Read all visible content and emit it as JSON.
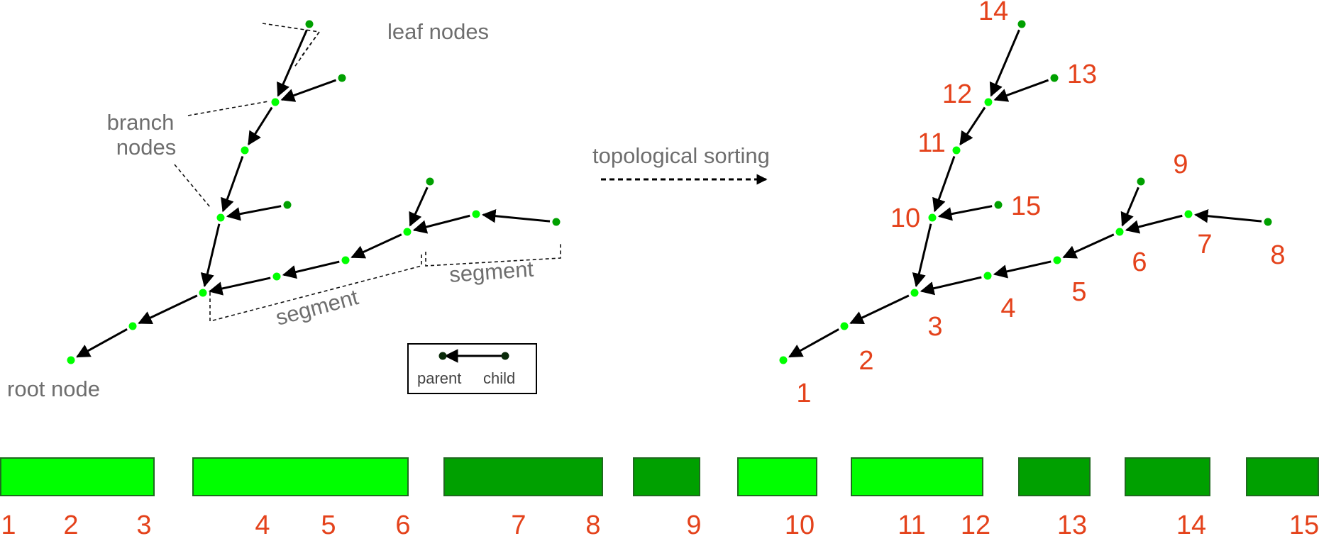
{
  "labels": {
    "leaf_nodes": "leaf nodes",
    "branch": "branch",
    "nodes": "nodes",
    "root_node": "root node",
    "segment_1": "segment",
    "segment_2": "segment",
    "topological_sorting": "topological sorting",
    "legend_parent": "parent",
    "legend_child": "child"
  },
  "colors": {
    "branch_node": "#00ff00",
    "leaf_node": "#00a000",
    "label_gray": "#6e6e6e",
    "number_orange": "#e4421b",
    "edge": "#000000"
  },
  "sorted_node_numbers": [
    "1",
    "2",
    "3",
    "4",
    "5",
    "6",
    "7",
    "8",
    "9",
    "10",
    "11",
    "12",
    "13",
    "14",
    "15"
  ],
  "memory_blocks": [
    {
      "start": "1",
      "end": "3",
      "color": "branch_node"
    },
    {
      "start": "4",
      "end": "6",
      "color": "branch_node"
    },
    {
      "start": "7",
      "end": "8",
      "color": "leaf_node"
    },
    {
      "start": "9",
      "end": "9",
      "color": "leaf_node"
    },
    {
      "start": "10",
      "end": "10",
      "color": "branch_node"
    },
    {
      "start": "11",
      "end": "12",
      "color": "branch_node"
    },
    {
      "start": "13",
      "end": "13",
      "color": "leaf_node"
    },
    {
      "start": "14",
      "end": "14",
      "color": "leaf_node"
    },
    {
      "start": "15",
      "end": "15",
      "color": "leaf_node"
    }
  ],
  "bottom_numbers": [
    "1",
    "2",
    "3",
    "4",
    "5",
    "6",
    "7",
    "8",
    "9",
    "10",
    "11",
    "12",
    "13",
    "14",
    "15"
  ]
}
